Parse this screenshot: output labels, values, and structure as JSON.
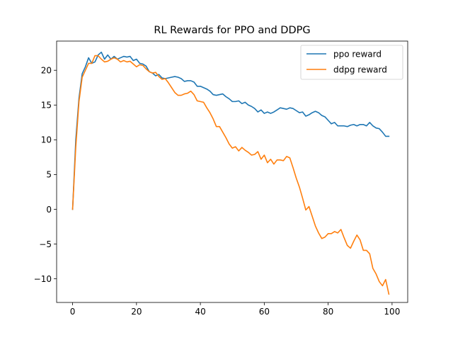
{
  "chart_data": {
    "type": "line",
    "title": "RL Rewards for PPO and DDPG",
    "xlabel": "",
    "ylabel": "",
    "xlim": [
      -5,
      104.9
    ],
    "ylim": [
      -13.4,
      24.2
    ],
    "x_ticks": [
      0,
      20,
      40,
      60,
      80,
      100
    ],
    "y_ticks": [
      -10,
      -5,
      0,
      5,
      10,
      15,
      20
    ],
    "grid": false,
    "legend_position": "top-right",
    "series": [
      {
        "name": "ppo reward",
        "color": "#1f77b4",
        "x": [
          0,
          1,
          2,
          3,
          4,
          5,
          6,
          7,
          8,
          9,
          10,
          11,
          12,
          13,
          14,
          15,
          16,
          17,
          18,
          19,
          20,
          21,
          22,
          23,
          24,
          25,
          26,
          27,
          28,
          29,
          30,
          31,
          32,
          33,
          34,
          35,
          36,
          37,
          38,
          39,
          40,
          41,
          42,
          43,
          44,
          45,
          46,
          47,
          48,
          49,
          50,
          51,
          52,
          53,
          54,
          55,
          56,
          57,
          58,
          59,
          60,
          61,
          62,
          63,
          64,
          65,
          66,
          67,
          68,
          69,
          70,
          71,
          72,
          73,
          74,
          75,
          76,
          77,
          78,
          79,
          80,
          81,
          82,
          83,
          84,
          85,
          86,
          87,
          88,
          89,
          90,
          91,
          92,
          93,
          94,
          95,
          96,
          97,
          98,
          99
        ],
        "values": [
          0,
          10,
          16,
          19.5,
          20.5,
          21.8,
          21,
          21.2,
          22.2,
          22.6,
          21.6,
          22.2,
          21.6,
          22,
          21.6,
          21.8,
          22,
          21.9,
          22,
          21.4,
          21.6,
          21,
          20.9,
          20.6,
          19.8,
          19.6,
          19.2,
          19.4,
          18.9,
          18.8,
          18.9,
          19,
          19.1,
          19,
          18.8,
          18.4,
          18.5,
          18.5,
          18.3,
          17.7,
          17.7,
          17.5,
          17.3,
          17,
          16.5,
          16.4,
          16.5,
          16.6,
          16.2,
          15.9,
          15.5,
          15.5,
          15.6,
          15.2,
          15.4,
          15,
          14.8,
          14.5,
          14,
          14.3,
          13.8,
          14,
          13.8,
          14,
          14.3,
          14.6,
          14.5,
          14.4,
          14.6,
          14.5,
          14.2,
          13.9,
          14,
          13.4,
          13.6,
          13.9,
          14.1,
          13.9,
          13.5,
          13.3,
          12.8,
          12.3,
          12.5,
          12,
          12,
          12,
          11.9,
          12.1,
          12.2,
          12,
          12.2,
          12.2,
          12,
          12.5,
          12,
          11.7,
          11.6,
          11.1,
          10.5,
          10.5
        ],
        "x_shift": 0
      },
      {
        "name": "ddpg reward",
        "color": "#ff7f0e",
        "x": [
          0,
          1,
          2,
          3,
          4,
          5,
          6,
          7,
          8,
          9,
          10,
          11,
          12,
          13,
          14,
          15,
          16,
          17,
          18,
          19,
          20,
          21,
          22,
          23,
          24,
          25,
          26,
          27,
          28,
          29,
          30,
          31,
          32,
          33,
          34,
          35,
          36,
          37,
          38,
          39,
          40,
          41,
          42,
          43,
          44,
          45,
          46,
          47,
          48,
          49,
          50,
          51,
          52,
          53,
          54,
          55,
          56,
          57,
          58,
          59,
          60,
          61,
          62,
          63,
          64,
          65,
          66,
          67,
          68,
          69,
          70,
          71,
          72,
          73,
          74,
          75,
          76,
          77,
          78,
          79,
          80,
          81,
          82,
          83,
          84,
          85,
          86,
          87,
          88,
          89,
          90,
          91,
          92,
          93,
          94,
          95,
          96,
          97,
          98,
          99
        ],
        "values": [
          0,
          9,
          15.5,
          19,
          20,
          21,
          21,
          22.1,
          22.1,
          21.6,
          21.2,
          21.3,
          21.6,
          21.8,
          21.6,
          21.2,
          21.4,
          21.2,
          21.3,
          20.9,
          20.5,
          20.8,
          20.7,
          20.2,
          19.8,
          19.6,
          19.7,
          19.1,
          18.7,
          18.8,
          18.2,
          17.5,
          16.8,
          16.4,
          16.4,
          16.6,
          16.7,
          17,
          16.5,
          15.6,
          15.5,
          15.4,
          14.6,
          13.9,
          13,
          11.9,
          11.9,
          11.1,
          10.3,
          9.4,
          8.8,
          9,
          8.4,
          8.9,
          8.5,
          8.2,
          7.8,
          7.9,
          8.3,
          7.2,
          7.8,
          6.7,
          7.2,
          6.5,
          7.1,
          7.1,
          7,
          7.6,
          7.4,
          6,
          4.5,
          3.2,
          1.6,
          -0.1,
          0.4,
          -1,
          -2.4,
          -3.4,
          -4.2,
          -4,
          -3.5,
          -3.5,
          -3.2,
          -3.4,
          -2.9,
          -4.1,
          -5.2,
          -5.6,
          -4.6,
          -3.7,
          -4.4,
          -5.9,
          -5.9,
          -6.4,
          -8.5,
          -9.3,
          -10.4,
          -11,
          -10.1,
          -12.2
        ],
        "x_shift": 0
      }
    ]
  }
}
